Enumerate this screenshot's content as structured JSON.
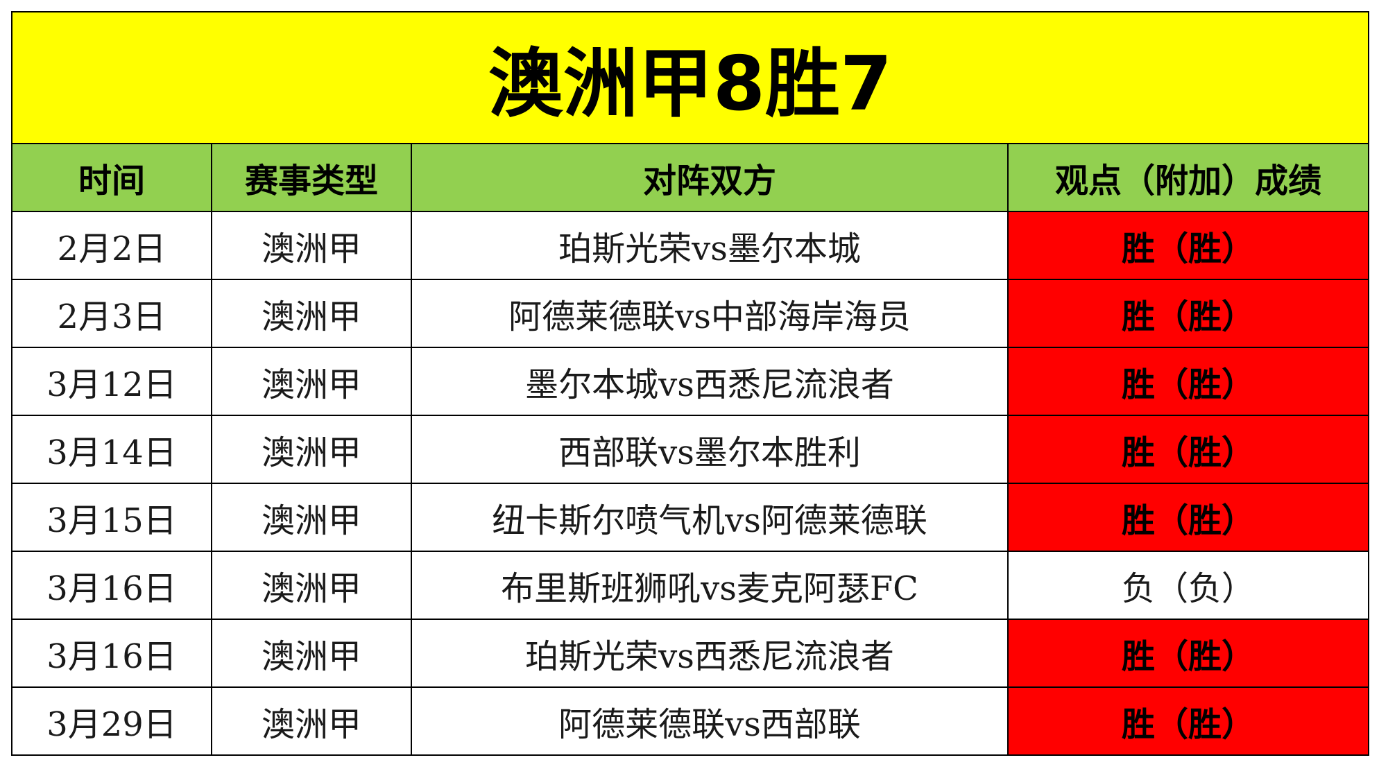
{
  "title": "澳洲甲8胜7",
  "colors": {
    "title_bg": "#ffff00",
    "header_bg": "#92d050",
    "win_bg": "#ff0000",
    "loss_bg": "#ffffff"
  },
  "headers": {
    "date": "时间",
    "type": "赛事类型",
    "match": "对阵双方",
    "result": "观点（附加）成绩"
  },
  "rows": [
    {
      "date": "2月2日",
      "type": "澳洲甲",
      "match": "珀斯光荣vs墨尔本城",
      "result": "胜（胜）",
      "outcome": "win"
    },
    {
      "date": "2月3日",
      "type": "澳洲甲",
      "match": "阿德莱德联vs中部海岸海员",
      "result": "胜（胜）",
      "outcome": "win"
    },
    {
      "date": "3月12日",
      "type": "澳洲甲",
      "match": "墨尔本城vs西悉尼流浪者",
      "result": "胜（胜）",
      "outcome": "win"
    },
    {
      "date": "3月14日",
      "type": "澳洲甲",
      "match": "西部联vs墨尔本胜利",
      "result": "胜（胜）",
      "outcome": "win"
    },
    {
      "date": "3月15日",
      "type": "澳洲甲",
      "match": "纽卡斯尔喷气机vs阿德莱德联",
      "result": "胜（胜）",
      "outcome": "win"
    },
    {
      "date": "3月16日",
      "type": "澳洲甲",
      "match": "布里斯班狮吼vs麦克阿瑟FC",
      "result": "负（负）",
      "outcome": "loss"
    },
    {
      "date": "3月16日",
      "type": "澳洲甲",
      "match": "珀斯光荣vs西悉尼流浪者",
      "result": "胜（胜）",
      "outcome": "win"
    },
    {
      "date": "3月29日",
      "type": "澳洲甲",
      "match": "阿德莱德联vs西部联",
      "result": "胜（胜）",
      "outcome": "win"
    }
  ]
}
